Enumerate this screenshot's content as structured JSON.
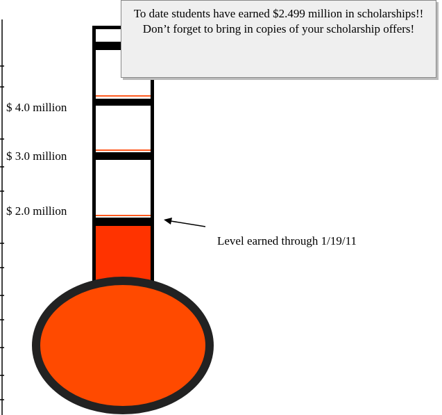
{
  "callout": {
    "text": "To date students have earned $2.499 million in scholarships!!  Don’t forget to bring in copies of your scholarship offers!"
  },
  "scale_labels": [
    "$ 4.0 million",
    "$ 3.0 million",
    "$ 2.0 million"
  ],
  "annotation": "Level earned through 1/19/11"
}
